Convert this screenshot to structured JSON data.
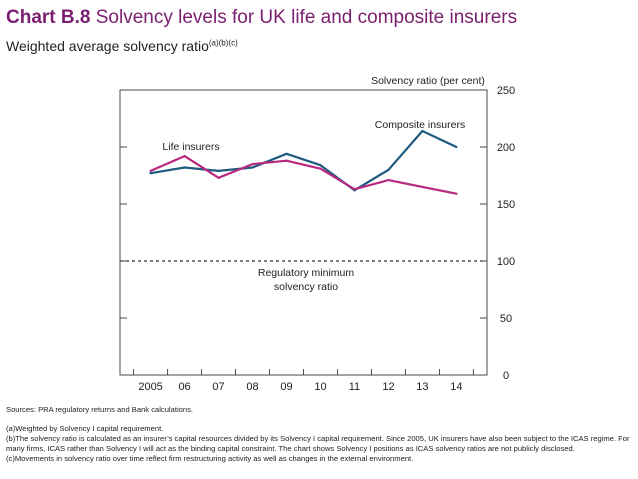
{
  "header": {
    "chart_label": "Chart B.8",
    "title_text": "Solvency levels for UK life and composite insurers",
    "subtitle": "Weighted average solvency ratio",
    "subtitle_superscript": "(a)(b)(c)"
  },
  "chart_data": {
    "type": "line",
    "categories": [
      "2005",
      "06",
      "07",
      "08",
      "09",
      "10",
      "11",
      "12",
      "13",
      "14"
    ],
    "x": [
      2005,
      2006,
      2007,
      2008,
      2009,
      2010,
      2011,
      2012,
      2013,
      2014
    ],
    "xlim": [
      2004.1,
      2014.9
    ],
    "ylim": [
      0,
      250
    ],
    "yticks": [
      0,
      50,
      100,
      150,
      200,
      250
    ],
    "ylabel": "Solvency ratio (per cent)",
    "series": [
      {
        "name": "Composite insurers",
        "color": "#1f5a80",
        "points": [
          [
            2005.0,
            177
          ],
          [
            2006.0,
            182
          ],
          [
            2007.0,
            179
          ],
          [
            2008.0,
            182
          ],
          [
            2009.0,
            194
          ],
          [
            2010.0,
            184
          ],
          [
            2011.0,
            162
          ],
          [
            2012.0,
            180
          ],
          [
            2013.0,
            214
          ],
          [
            2014.0,
            200
          ]
        ]
      },
      {
        "name": "Life insurers",
        "color": "#b7287e",
        "points": [
          [
            2005.0,
            179
          ],
          [
            2006.0,
            192
          ],
          [
            2007.0,
            173
          ],
          [
            2008.0,
            185
          ],
          [
            2009.0,
            188
          ],
          [
            2010.0,
            181
          ],
          [
            2011.0,
            163
          ],
          [
            2012.0,
            171
          ],
          [
            2013.0,
            165
          ],
          [
            2014.0,
            159
          ]
        ]
      }
    ],
    "reference_line": {
      "value": 100,
      "label_lines": [
        "Regulatory minimum",
        "solvency ratio"
      ],
      "style": "dashed"
    }
  },
  "footnotes": {
    "sources": "Sources: PRA regulatory returns and Bank calculations.",
    "note_a": "(a)Weighted by Solvency I capital requirement.",
    "note_b": "(b)The solvency ratio is calculated as an insurer’s capital resources divided by its Solvency I capital requirement. Since 2005, UK insurers have also been subject to the ICAS regime. For many firms, ICAS rather than Solvency I will act as the binding capital constraint. The chart shows Solvency I positions as ICAS solvency ratios are not publicly disclosed.",
    "note_c": "(c)Movements in solvency ratio over time reflect firm restructuring activity as well as changes in the external environment."
  }
}
